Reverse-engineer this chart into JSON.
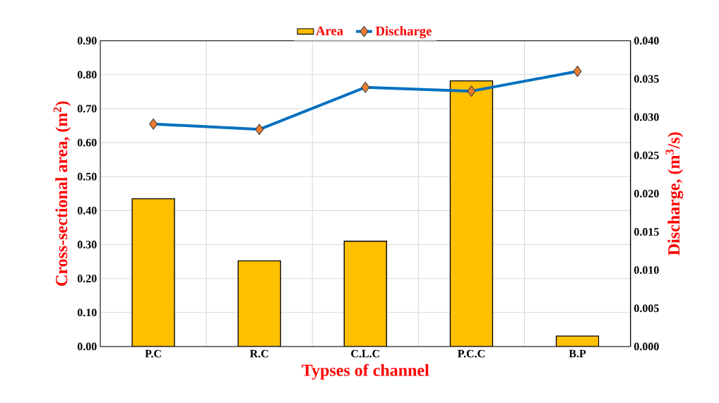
{
  "chart_data": {
    "type": "bar",
    "xlabel": "Typses of channel",
    "ylabel": "Cross-sectional area, (m$^{2}$)",
    "y2label": "Discharge, (m$^{3}$/s)",
    "categories": [
      "P.C",
      "R.C",
      "C.L.C",
      "P.C.C",
      "B.P"
    ],
    "series": [
      {
        "name": "Area",
        "color": "#ffc000",
        "values": [
          0.435,
          0.252,
          0.31,
          0.782,
          0.031
        ]
      },
      {
        "name": "Discharge",
        "type": "line",
        "axis": "y2",
        "color": "#0070c0",
        "values": [
          0.0291,
          0.0284,
          0.0339,
          0.0334,
          0.036
        ]
      }
    ],
    "ylim": [
      0,
      0.9
    ],
    "yticks": [
      {
        "value": 0,
        "label": "0.00"
      },
      {
        "value": 0.1,
        "label": "0.10"
      },
      {
        "value": 0.2,
        "label": "0.20"
      },
      {
        "value": 0.3,
        "label": "0.30"
      },
      {
        "value": 0.4,
        "label": "0.40"
      },
      {
        "value": 0.5,
        "label": "0.50"
      },
      {
        "value": 0.6,
        "label": "0.60"
      },
      {
        "value": 0.7,
        "label": "0.70"
      },
      {
        "value": 0.8,
        "label": "0.80"
      },
      {
        "value": 0.9,
        "label": "0.90"
      }
    ],
    "y2lim": [
      0,
      0.04
    ],
    "y2ticks": [
      {
        "value": 0,
        "label": "0.000"
      },
      {
        "value": 0.005,
        "label": "0.005"
      },
      {
        "value": 0.01,
        "label": "0.010"
      },
      {
        "value": 0.015,
        "label": "0.015"
      },
      {
        "value": 0.02,
        "label": "0.020"
      },
      {
        "value": 0.025,
        "label": "0.025"
      },
      {
        "value": 0.03,
        "label": "0.030"
      },
      {
        "value": 0.035,
        "label": "0.035"
      },
      {
        "value": 0.04,
        "label": "0.040"
      }
    ],
    "grid": true,
    "legend": "top",
    "marker": "diamond",
    "line_style": "solid"
  }
}
